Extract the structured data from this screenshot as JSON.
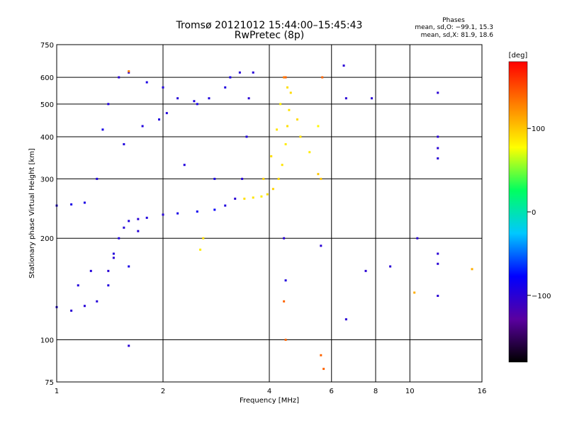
{
  "chart_data": {
    "type": "scatter",
    "title": "Tromsø 20121012 15:44:00–15:45:43",
    "subtitle": "RwPretec (8p)",
    "xlabel": "Frequency [MHz]",
    "ylabel": "Stationary phase Virtual Height [km]",
    "x_scale": "log",
    "y_scale": "log",
    "xlim": [
      1,
      16
    ],
    "ylim": [
      75,
      750
    ],
    "x_ticks": [
      1,
      2,
      4,
      6,
      8,
      10,
      16
    ],
    "x_tick_labels": [
      "1",
      "2",
      "4",
      "6",
      "8",
      "10",
      "16"
    ],
    "y_ticks": [
      75,
      100,
      200,
      300,
      400,
      500,
      600,
      750
    ],
    "y_tick_labels": [
      "75",
      "100",
      "200",
      "300",
      "400",
      "500",
      "600",
      "750"
    ],
    "grid": true,
    "info": {
      "heading": "Phases",
      "line1": "mean, sd,O: −99.1, 15.3",
      "line2": "mean, sd,X:  81.9, 18.6"
    },
    "colorbar": {
      "label": "[deg]",
      "range": [
        -180,
        180
      ],
      "tick_values": [
        100,
        0,
        -100
      ],
      "tick_labels": [
        "100",
        "0",
        "−100"
      ],
      "colors": [
        "#000000",
        "#5a00a0",
        "#0000ff",
        "#00c8ff",
        "#00ff60",
        "#ffff00",
        "#ff8000",
        "#ff0000"
      ]
    },
    "series": [
      {
        "values": [
          [
            1.0,
            125,
            -95
          ],
          [
            1.1,
            122,
            -100
          ],
          [
            1.2,
            126,
            -98
          ],
          [
            1.3,
            130,
            -97
          ],
          [
            1.4,
            145,
            -95
          ],
          [
            1.45,
            175,
            -100
          ],
          [
            1.5,
            200,
            -95
          ],
          [
            1.55,
            215,
            -98
          ],
          [
            1.6,
            225,
            -95
          ],
          [
            1.7,
            228,
            -100
          ],
          [
            1.8,
            230,
            -95
          ],
          [
            2.0,
            235,
            -98
          ],
          [
            2.2,
            237,
            -90
          ],
          [
            2.5,
            240,
            -85
          ],
          [
            2.8,
            243,
            -80
          ],
          [
            3.0,
            250,
            -95
          ],
          [
            3.2,
            262,
            -100
          ],
          [
            3.35,
            300,
            -98
          ],
          [
            3.45,
            400,
            -95
          ],
          [
            3.5,
            520,
            -100
          ],
          [
            3.6,
            620,
            -98
          ],
          [
            1.0,
            250,
            -95
          ],
          [
            1.1,
            252,
            -90
          ],
          [
            1.2,
            255,
            -92
          ],
          [
            1.3,
            300,
            -95
          ],
          [
            1.4,
            500,
            -95
          ],
          [
            1.5,
            600,
            -100
          ],
          [
            1.6,
            620,
            -95
          ],
          [
            1.8,
            580,
            -92
          ],
          [
            2.0,
            560,
            -95
          ],
          [
            2.2,
            520,
            -98
          ],
          [
            2.5,
            500,
            -90
          ],
          [
            1.35,
            420,
            -90
          ],
          [
            1.55,
            380,
            -95
          ],
          [
            1.75,
            430,
            -95
          ],
          [
            1.95,
            450,
            -95
          ],
          [
            2.05,
            470,
            -96
          ],
          [
            2.3,
            330,
            -95
          ],
          [
            1.7,
            210,
            -98
          ],
          [
            1.45,
            180,
            -96
          ],
          [
            1.15,
            145,
            -96
          ],
          [
            1.25,
            160,
            -96
          ],
          [
            1.4,
            160,
            -100
          ],
          [
            1.6,
            165,
            -90
          ],
          [
            2.8,
            300,
            -90
          ],
          [
            3.0,
            560,
            -95
          ],
          [
            3.1,
            600,
            -92
          ],
          [
            3.3,
            620,
            -98
          ],
          [
            2.7,
            520,
            -95
          ],
          [
            2.45,
            510,
            -95
          ]
        ]
      },
      {
        "values": [
          [
            3.4,
            262,
            90
          ],
          [
            3.6,
            264,
            88
          ],
          [
            3.8,
            266,
            85
          ],
          [
            3.95,
            270,
            90
          ],
          [
            4.1,
            280,
            95
          ],
          [
            4.25,
            300,
            92
          ],
          [
            4.35,
            330,
            88
          ],
          [
            4.45,
            380,
            85
          ],
          [
            4.5,
            430,
            90
          ],
          [
            4.55,
            480,
            88
          ],
          [
            4.6,
            540,
            92
          ],
          [
            4.5,
            560,
            90
          ],
          [
            4.3,
            500,
            85
          ],
          [
            4.2,
            420,
            88
          ],
          [
            4.05,
            350,
            90
          ],
          [
            3.85,
            300,
            95
          ],
          [
            4.8,
            450,
            92
          ],
          [
            4.9,
            400,
            90
          ],
          [
            5.2,
            360,
            85
          ],
          [
            5.5,
            430,
            80
          ],
          [
            2.6,
            200,
            90
          ],
          [
            2.55,
            185,
            85
          ],
          [
            1.6,
            625,
            130
          ],
          [
            4.4,
            600,
            130
          ]
        ]
      },
      {
        "values": [
          [
            4.4,
            200,
            -100
          ],
          [
            4.45,
            150,
            -95
          ],
          [
            5.6,
            190,
            -100
          ],
          [
            6.6,
            520,
            -100
          ],
          [
            6.5,
            650,
            -100
          ],
          [
            6.6,
            115,
            -100
          ],
          [
            7.8,
            520,
            -100
          ],
          [
            7.5,
            160,
            -100
          ],
          [
            8.8,
            165,
            -100
          ],
          [
            10.5,
            200,
            -100
          ],
          [
            12.0,
            540,
            -100
          ],
          [
            12.0,
            400,
            -100
          ],
          [
            12.0,
            370,
            -100
          ],
          [
            12.0,
            345,
            -100
          ],
          [
            12.0,
            180,
            -100
          ],
          [
            12.0,
            168,
            -100
          ],
          [
            12.0,
            135,
            -100
          ],
          [
            1.6,
            96,
            -100
          ]
        ]
      },
      {
        "values": [
          [
            4.4,
            130,
            140
          ],
          [
            4.45,
            100,
            140
          ],
          [
            5.6,
            90,
            140
          ],
          [
            5.7,
            82,
            140
          ],
          [
            5.65,
            600,
            140
          ],
          [
            10.3,
            138,
            110
          ],
          [
            15.0,
            162,
            110
          ],
          [
            5.6,
            300,
            100
          ],
          [
            5.5,
            310,
            100
          ],
          [
            4.45,
            600,
            140
          ]
        ]
      }
    ]
  }
}
